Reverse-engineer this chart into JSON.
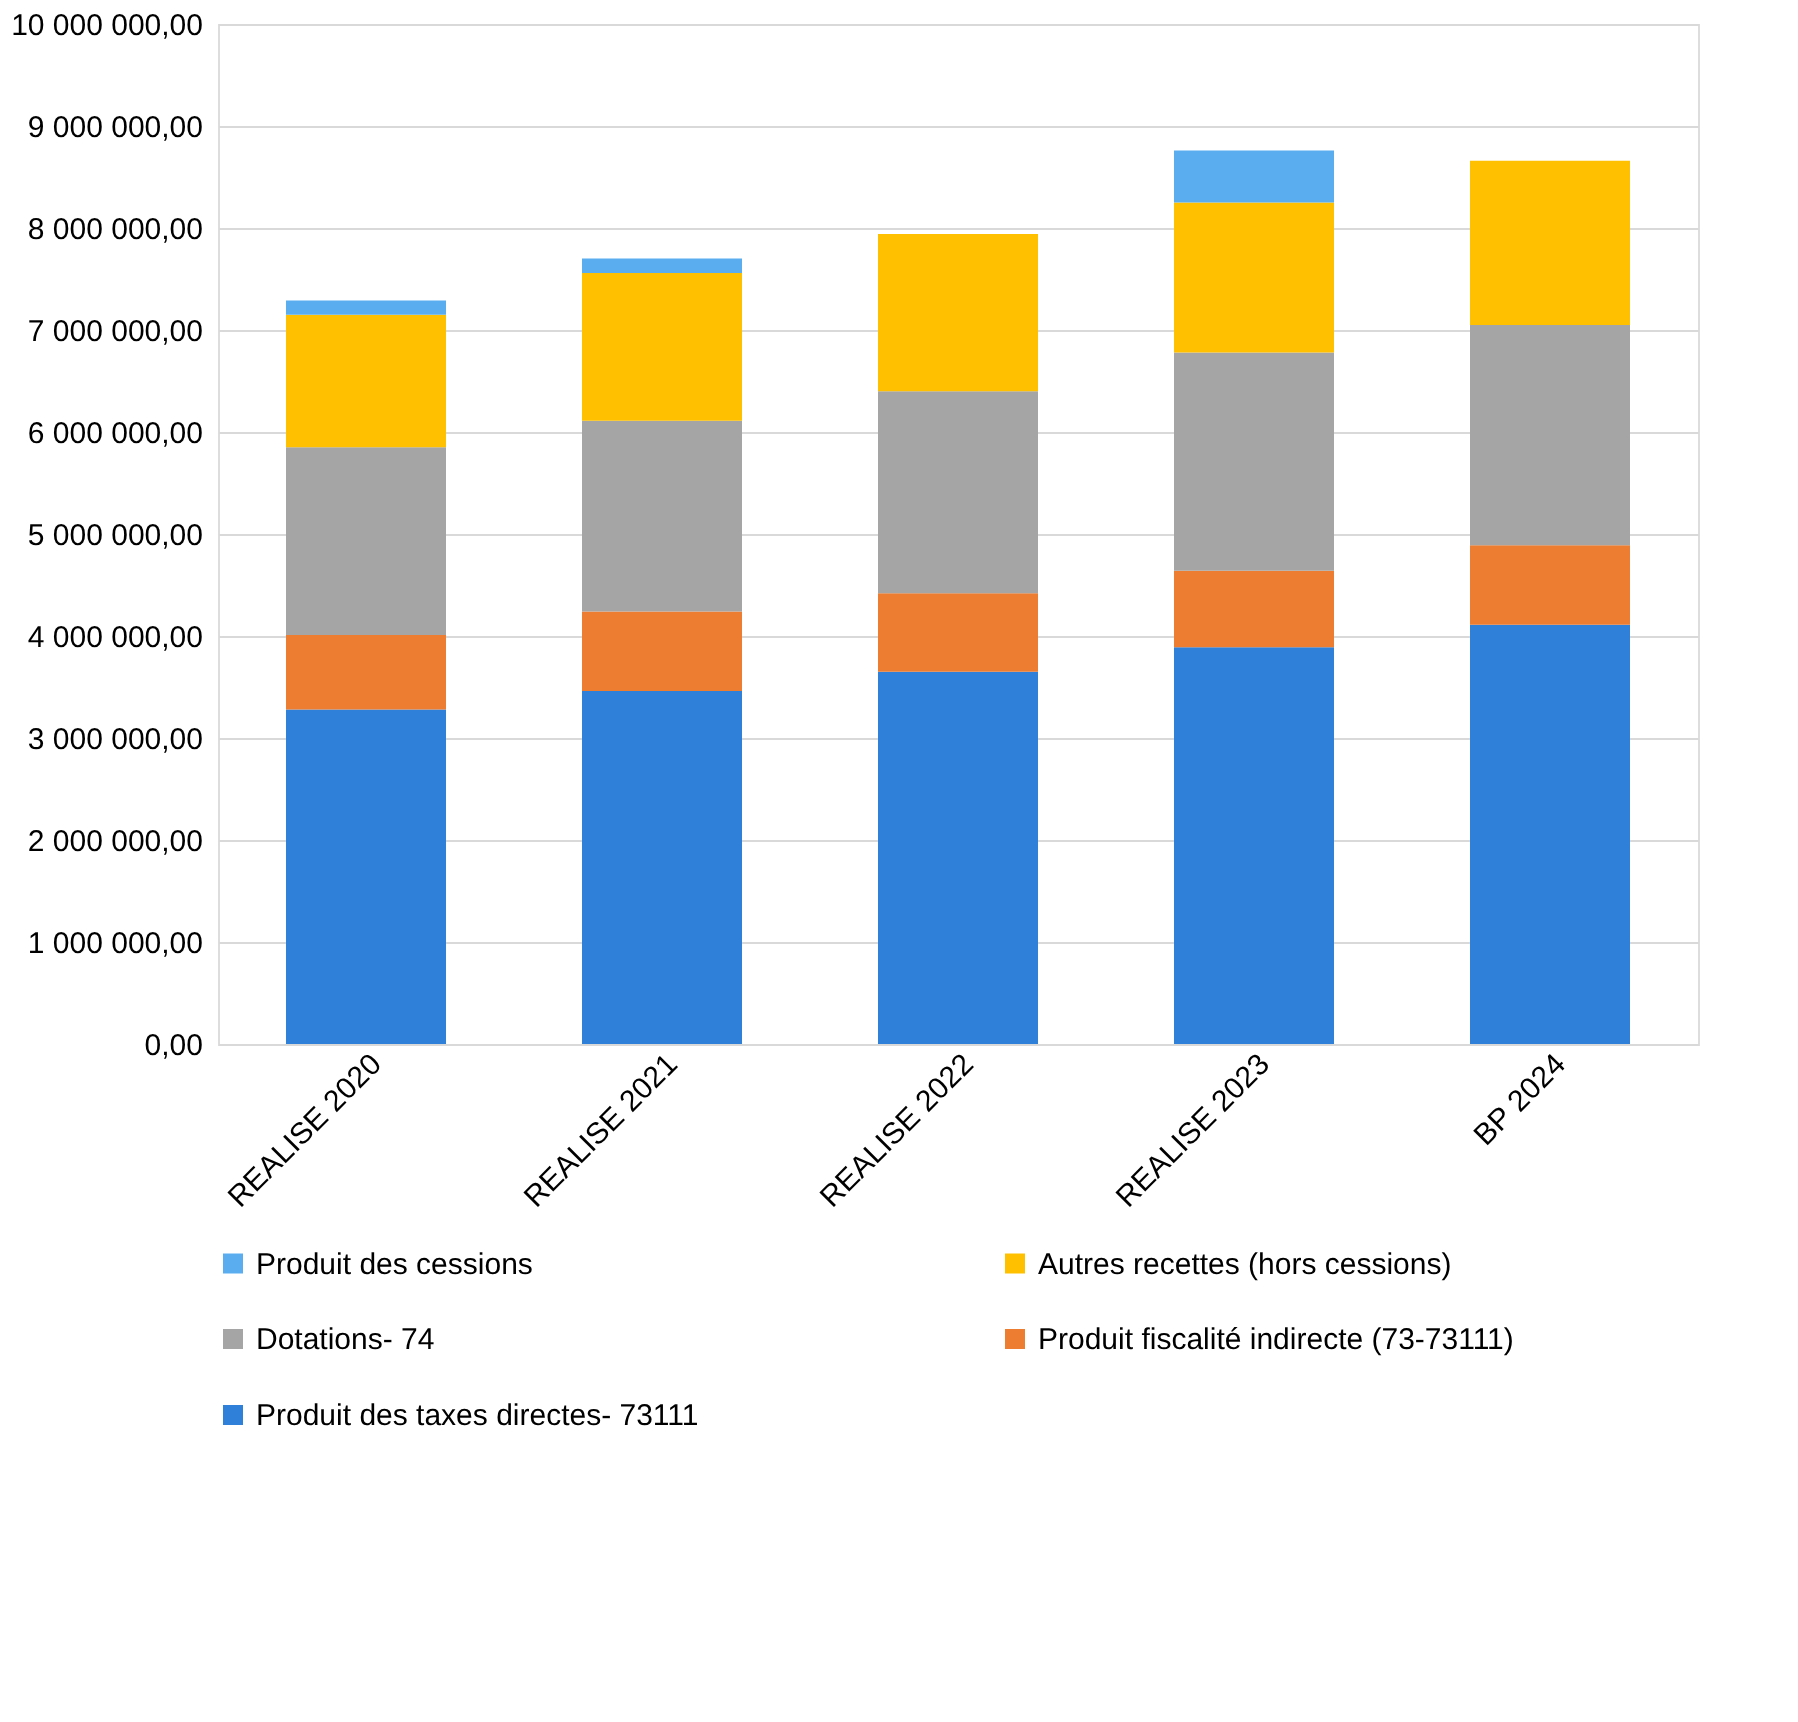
{
  "chart_data": {
    "type": "bar",
    "stacked": true,
    "categories": [
      "REALISE 2020",
      "REALISE 2021",
      "REALISE 2022",
      "REALISE 2023",
      "BP 2024"
    ],
    "series": [
      {
        "name": "Produit des taxes directes- 73111",
        "color": "#2f80d8",
        "values": [
          3280000,
          3460000,
          3650000,
          3890000,
          4110000
        ]
      },
      {
        "name": "Produit fiscalité indirecte (73-73111)",
        "color": "#ed7d31",
        "values": [
          730000,
          780000,
          770000,
          750000,
          780000
        ]
      },
      {
        "name": "Dotations- 74",
        "color": "#a5a5a5",
        "values": [
          1840000,
          1870000,
          1980000,
          2140000,
          2160000
        ]
      },
      {
        "name": "Autres recettes (hors cessions)",
        "color": "#ffc000",
        "values": [
          1300000,
          1450000,
          1540000,
          1470000,
          1610000
        ]
      },
      {
        "name": "Produit des cessions",
        "color": "#5aaef0",
        "values": [
          140000,
          140000,
          null,
          510000,
          null
        ]
      }
    ],
    "ylim": [
      0,
      10000000
    ],
    "yticks": [
      {
        "value": 0,
        "label": "0,00"
      },
      {
        "value": 1000000,
        "label": "1 000 000,00"
      },
      {
        "value": 2000000,
        "label": "2 000 000,00"
      },
      {
        "value": 3000000,
        "label": "3 000 000,00"
      },
      {
        "value": 4000000,
        "label": "4 000 000,00"
      },
      {
        "value": 5000000,
        "label": "5 000 000,00"
      },
      {
        "value": 6000000,
        "label": "6 000 000,00"
      },
      {
        "value": 7000000,
        "label": "7 000 000,00"
      },
      {
        "value": 8000000,
        "label": "8 000 000,00"
      },
      {
        "value": 9000000,
        "label": "9 000 000,00"
      },
      {
        "value": 10000000,
        "label": "10 000 000,00"
      }
    ],
    "grid": "y",
    "legend": "bottom"
  }
}
